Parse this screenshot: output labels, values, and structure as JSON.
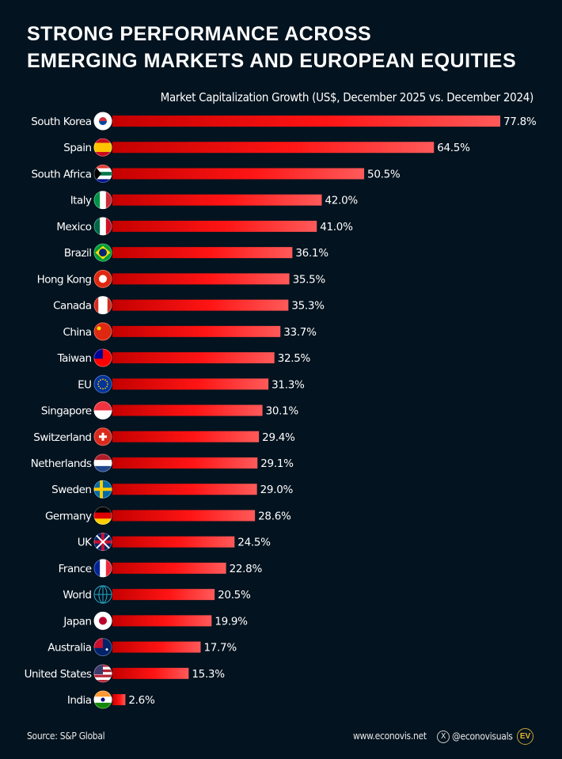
{
  "title_lines": [
    "Strong Performance Across",
    "Emerging Markets and European Equities"
  ],
  "colors": {
    "background": "#03131f",
    "bar_start": "#c40000",
    "bar_mid": "#ff1414",
    "bar_end": "#ff5a5a"
  },
  "chart_data": {
    "type": "bar",
    "orientation": "horizontal",
    "title": "Strong Performance Across Emerging Markets and European Equities",
    "subtitle": "Market Capitalization Growth (US$, December 2025 vs. December 2024)",
    "unit": "%",
    "xlim": [
      0,
      80
    ],
    "grid": false,
    "categories": [
      "South Korea",
      "Spain",
      "South Africa",
      "Italy",
      "Mexico",
      "Brazil",
      "Hong Kong",
      "Canada",
      "China",
      "Taiwan",
      "EU",
      "Singapore",
      "Switzerland",
      "Netherlands",
      "Sweden",
      "Germany",
      "UK",
      "France",
      "World",
      "Japan",
      "Australia",
      "United States",
      "India"
    ],
    "values": [
      77.8,
      64.5,
      50.5,
      42.0,
      41.0,
      36.1,
      35.5,
      35.3,
      33.7,
      32.5,
      31.3,
      30.1,
      29.4,
      29.1,
      29.0,
      28.6,
      24.5,
      22.8,
      20.5,
      19.9,
      17.7,
      15.3,
      2.6
    ],
    "value_labels": [
      "77.8%",
      "64.5%",
      "50.5%",
      "42.0%",
      "41.0%",
      "36.1%",
      "35.5%",
      "35.3%",
      "33.7%",
      "32.5%",
      "31.3%",
      "30.1%",
      "29.4%",
      "29.1%",
      "29.0%",
      "28.6%",
      "24.5%",
      "22.8%",
      "20.5%",
      "19.9%",
      "17.7%",
      "15.3%",
      "2.6%"
    ],
    "icons": [
      "flag-south-korea",
      "flag-spain",
      "flag-south-africa",
      "flag-italy",
      "flag-mexico",
      "flag-brazil",
      "flag-hong-kong",
      "flag-canada",
      "flag-china",
      "flag-taiwan",
      "flag-eu",
      "flag-singapore",
      "flag-switzerland",
      "flag-netherlands",
      "flag-sweden",
      "flag-germany",
      "flag-uk",
      "flag-france",
      "globe-icon",
      "flag-japan",
      "flag-australia",
      "flag-united-states",
      "flag-india"
    ]
  },
  "footer": {
    "source": "Source: S&P Global",
    "website": "www.econovis.net",
    "x_handle": "@econovisuals",
    "x_icon": "X",
    "logo": "EV"
  }
}
